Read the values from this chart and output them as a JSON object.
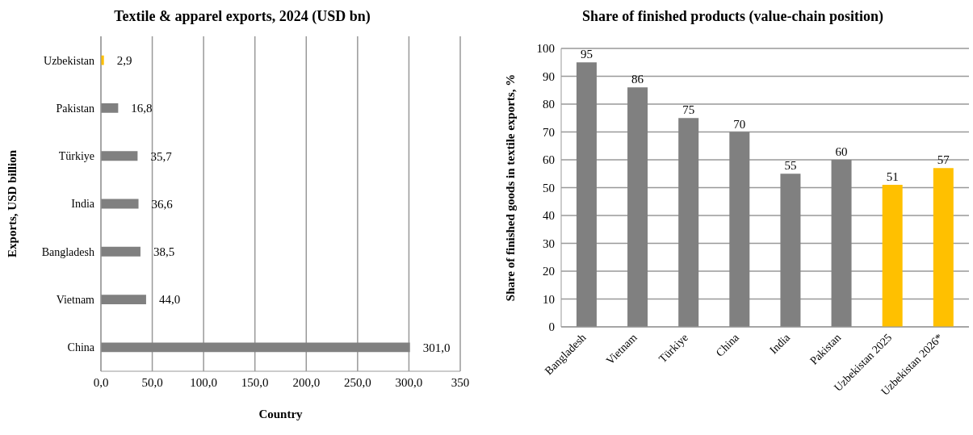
{
  "chart_data": [
    {
      "type": "bar",
      "orientation": "horizontal",
      "title": "Textile & apparel exports, 2024 (USD bn)",
      "xlabel": "Country",
      "ylabel": "Exports, USD billion",
      "categories": [
        "Uzbekistan",
        "Pakistan",
        "Türkiye",
        "India",
        "Bangladesh",
        "Vietnam",
        "China"
      ],
      "values": [
        2.9,
        16.8,
        35.7,
        36.6,
        38.5,
        44.0,
        301.0
      ],
      "colors": [
        "#ffc000",
        "#808080",
        "#808080",
        "#808080",
        "#808080",
        "#808080",
        "#808080"
      ],
      "value_labels": [
        "2,9",
        "16,8",
        "35,7",
        "36,6",
        "38,5",
        "44,0",
        "301,0"
      ],
      "xlim": [
        0,
        350
      ],
      "xticks": [
        {
          "value": 0,
          "label": "0,0"
        },
        {
          "value": 50,
          "label": "50,0"
        },
        {
          "value": 100,
          "label": "100,0"
        },
        {
          "value": 150,
          "label": "150,0"
        },
        {
          "value": 200,
          "label": "200,0"
        },
        {
          "value": 250,
          "label": "250,0"
        },
        {
          "value": 300,
          "label": "300,0"
        },
        {
          "value": 350,
          "label": "350"
        }
      ],
      "grid": "x"
    },
    {
      "type": "bar",
      "title": "Share of finished products (value-chain position)",
      "ylabel": "Share of finished goods in textile exports, %",
      "categories": [
        "Bangladesh",
        "Vietnam",
        "Türkiye",
        "China",
        "India",
        "Pakistan",
        "Uzbekistan 2025",
        "Uzbekistan 2026*"
      ],
      "values": [
        95,
        86,
        75,
        70,
        55,
        60,
        51,
        57
      ],
      "colors": [
        "#808080",
        "#808080",
        "#808080",
        "#808080",
        "#808080",
        "#808080",
        "#ffc000",
        "#ffc000"
      ],
      "ylim": [
        0,
        100
      ],
      "yticks": [
        0,
        10,
        20,
        30,
        40,
        50,
        60,
        70,
        80,
        90,
        100
      ],
      "grid": "y",
      "data_labels": true
    }
  ]
}
